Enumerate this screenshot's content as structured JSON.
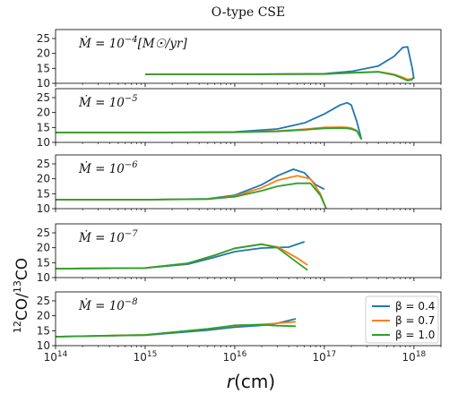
{
  "title": "O-type CSE",
  "ylabel_parts": {
    "sup1": "12",
    "mid": "CO/",
    "sup2": "13",
    "end": "CO"
  },
  "xlabel_parts": {
    "var": "r",
    "unit": "(cm)"
  },
  "chart_data": {
    "type": "line",
    "x_scale": "log",
    "xlim": [
      100000000000000.0,
      2e+18
    ],
    "ylim": [
      10,
      28
    ],
    "yticks": [
      10,
      15,
      20,
      25
    ],
    "yticklabels": [
      "10",
      "15",
      "20",
      "25"
    ],
    "xticks": [
      100000000000000.0,
      1000000000000000.0,
      1e+16,
      1e+17,
      1e+18
    ],
    "xticklabels": [
      {
        "base": "10",
        "exp": "14"
      },
      {
        "base": "10",
        "exp": "15"
      },
      {
        "base": "10",
        "exp": "16"
      },
      {
        "base": "10",
        "exp": "17"
      },
      {
        "base": "10",
        "exp": "18"
      }
    ],
    "legend": {
      "placement": "bottom-right of last panel",
      "entries": [
        {
          "label": "β = 0.4",
          "color": "#1f77b4"
        },
        {
          "label": "β = 0.7",
          "color": "#ff7f0e"
        },
        {
          "label": "β = 1.0",
          "color": "#2ca02c"
        }
      ]
    },
    "panels": [
      {
        "label_main": "Ṁ = 10",
        "label_exp": "−4",
        "label_unit": "[M☉/yr]",
        "series": [
          {
            "name": "β = 0.4",
            "color": "#1f77b4",
            "x": [
              1000000000000000.0,
              1e+16,
              1e+17,
              2e+17,
              4e+17,
              6e+17,
              7.5e+17,
              8.5e+17,
              9.5e+17,
              1e+18
            ],
            "y": [
              13,
              13,
              13.2,
              14,
              15.8,
              19,
              22,
              22.2,
              15.5,
              11.5
            ]
          },
          {
            "name": "β = 0.7",
            "color": "#ff7f0e",
            "x": [
              1000000000000000.0,
              1e+16,
              1e+17,
              2e+17,
              4e+17,
              6e+17,
              7.5e+17,
              8.5e+17,
              9.5e+17,
              1e+18
            ],
            "y": [
              13,
              13,
              13.1,
              13.5,
              13.9,
              13,
              12,
              11.3,
              11.5,
              12.2
            ]
          },
          {
            "name": "β = 1.0",
            "color": "#2ca02c",
            "x": [
              1000000000000000.0,
              1e+16,
              1e+17,
              2e+17,
              4e+17,
              6e+17,
              7.5e+17,
              8.5e+17,
              9.5e+17,
              1e+18
            ],
            "y": [
              13,
              13,
              13.1,
              13.5,
              13.8,
              12.8,
              11.6,
              10.9,
              11.2,
              12.2
            ]
          }
        ]
      },
      {
        "label_main": "Ṁ = 10",
        "label_exp": "−5",
        "label_unit": "",
        "series": [
          {
            "name": "β = 0.4",
            "color": "#1f77b4",
            "x": [
              100000000000000.0,
              1000000000000000.0,
              1e+16,
              3e+16,
              6e+16,
              1e+17,
              1.5e+17,
              1.8e+17,
              2e+17,
              2.3e+17,
              2.6e+17
            ],
            "y": [
              13.3,
              13.3,
              13.5,
              14.5,
              16.5,
              19.5,
              22.5,
              23.3,
              22.5,
              17,
              11
            ]
          },
          {
            "name": "β = 0.7",
            "color": "#ff7f0e",
            "x": [
              100000000000000.0,
              1000000000000000.0,
              1e+16,
              3e+16,
              6e+16,
              1e+17,
              1.5e+17,
              1.8e+17,
              2e+17,
              2.3e+17,
              2.6e+17
            ],
            "y": [
              13.3,
              13.3,
              13.4,
              13.8,
              14.4,
              15,
              15.1,
              15,
              14.8,
              14,
              11
            ]
          },
          {
            "name": "β = 1.0",
            "color": "#2ca02c",
            "x": [
              100000000000000.0,
              1000000000000000.0,
              1e+16,
              3e+16,
              6e+16,
              1e+17,
              1.5e+17,
              1.8e+17,
              2e+17,
              2.3e+17,
              2.6e+17
            ],
            "y": [
              13.3,
              13.3,
              13.4,
              13.7,
              14.2,
              14.7,
              14.8,
              14.7,
              14.5,
              13.8,
              11
            ]
          }
        ]
      },
      {
        "label_main": "Ṁ = 10",
        "label_exp": "−6",
        "label_unit": "",
        "series": [
          {
            "name": "β = 0.4",
            "color": "#1f77b4",
            "x": [
              100000000000000.0,
              1000000000000000.0,
              5000000000000000.0,
              1e+16,
              2e+16,
              3e+16,
              4.5e+16,
              6e+16,
              8e+16,
              1e+17
            ],
            "y": [
              13,
              13,
              13.3,
              14.5,
              18,
              21,
              23.2,
              22,
              18,
              16.5
            ]
          },
          {
            "name": "β = 0.7",
            "color": "#ff7f0e",
            "x": [
              100000000000000.0,
              1000000000000000.0,
              5000000000000000.0,
              1e+16,
              2e+16,
              3e+16,
              5e+16,
              7e+16,
              9e+16,
              1.05e+17
            ],
            "y": [
              13,
              13,
              13.2,
              14.2,
              17,
              19.5,
              21,
              20,
              15,
              10
            ]
          },
          {
            "name": "β = 1.0",
            "color": "#2ca02c",
            "x": [
              100000000000000.0,
              1000000000000000.0,
              5000000000000000.0,
              1e+16,
              2e+16,
              3e+16,
              5e+16,
              7e+16,
              9e+16,
              1.05e+17
            ],
            "y": [
              13,
              13,
              13.2,
              14,
              16,
              17.5,
              18.5,
              18.5,
              14.5,
              10
            ]
          }
        ]
      },
      {
        "label_main": "Ṁ = 10",
        "label_exp": "−7",
        "label_unit": "",
        "series": [
          {
            "name": "β = 0.4",
            "color": "#1f77b4",
            "x": [
              100000000000000.0,
              1000000000000000.0,
              3000000000000000.0,
              6000000000000000.0,
              1e+16,
              2e+16,
              4e+16,
              6e+16
            ],
            "y": [
              13,
              13.2,
              14.5,
              16.8,
              18.7,
              19.9,
              20.2,
              22
            ]
          },
          {
            "name": "β = 0.7",
            "color": "#ff7f0e",
            "x": [
              100000000000000.0,
              1000000000000000.0,
              3000000000000000.0,
              6000000000000000.0,
              1e+16,
              2e+16,
              3e+16,
              5e+16,
              6.5e+16
            ],
            "y": [
              13,
              13.2,
              14.8,
              17.5,
              19.8,
              21.2,
              20.3,
              16.5,
              14.2
            ]
          },
          {
            "name": "β = 1.0",
            "color": "#2ca02c",
            "x": [
              100000000000000.0,
              1000000000000000.0,
              3000000000000000.0,
              6000000000000000.0,
              1e+16,
              2e+16,
              3e+16,
              5e+16,
              6.5e+16
            ],
            "y": [
              13,
              13.2,
              14.8,
              17.5,
              19.8,
              21.2,
              20,
              15,
              12.5
            ]
          }
        ]
      },
      {
        "label_main": "Ṁ = 10",
        "label_exp": "−8",
        "label_unit": "",
        "series": [
          {
            "name": "β = 0.4",
            "color": "#1f77b4",
            "x": [
              100000000000000.0,
              1000000000000000.0,
              5000000000000000.0,
              1e+16,
              2e+16,
              3e+16,
              4.8e+16
            ],
            "y": [
              13,
              13.5,
              15.2,
              16.2,
              16.8,
              17.5,
              19
            ]
          },
          {
            "name": "β = 0.7",
            "color": "#ff7f0e",
            "x": [
              100000000000000.0,
              1000000000000000.0,
              5000000000000000.0,
              1e+16,
              2e+16,
              3e+16,
              4.8e+16
            ],
            "y": [
              13,
              13.6,
              15.6,
              16.7,
              17.1,
              17.5,
              18
            ]
          },
          {
            "name": "β = 1.0",
            "color": "#2ca02c",
            "x": [
              100000000000000.0,
              1000000000000000.0,
              5000000000000000.0,
              1e+16,
              2e+16,
              3e+16,
              4.8e+16
            ],
            "y": [
              13,
              13.6,
              15.6,
              16.8,
              17,
              16.7,
              16.5
            ]
          }
        ]
      }
    ]
  }
}
